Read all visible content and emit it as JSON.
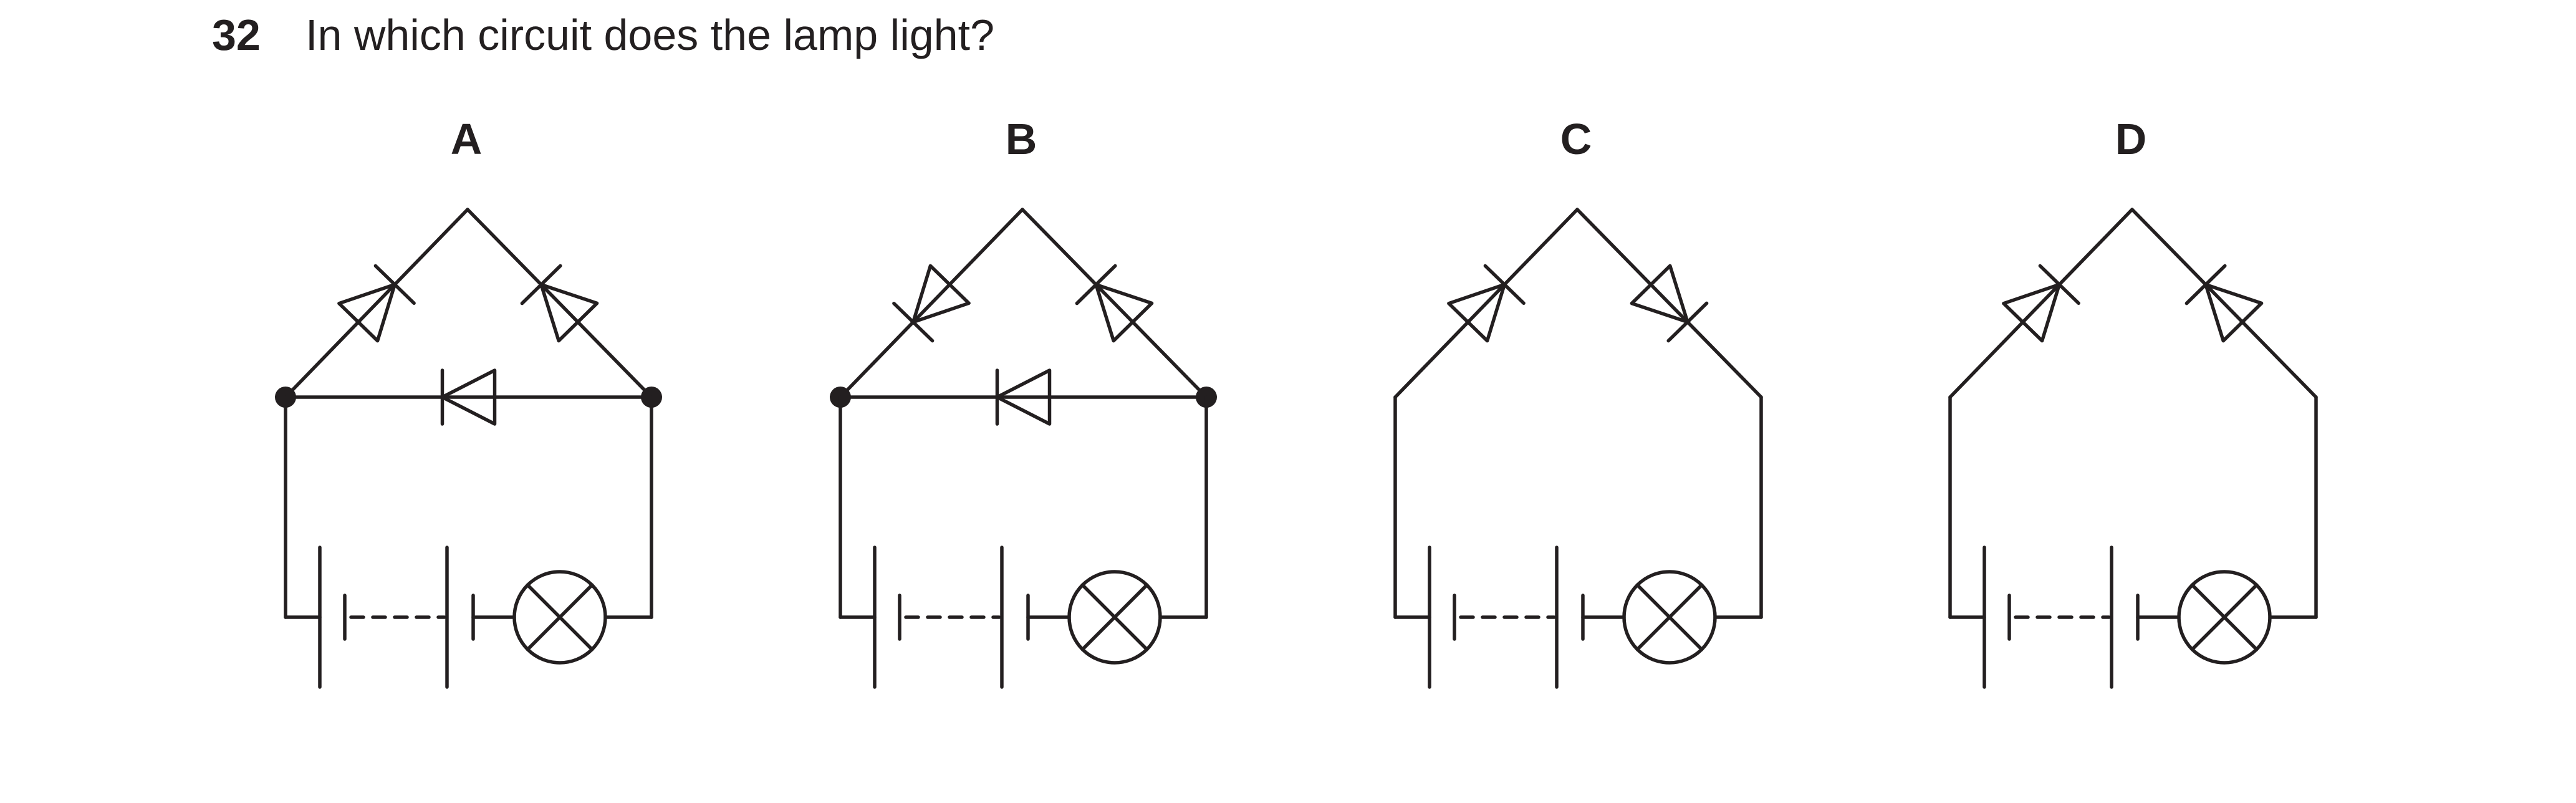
{
  "question": {
    "number": "32",
    "text": "In which circuit does the lamp light?"
  },
  "options": [
    {
      "label": "A",
      "top_left_diode": "forward",
      "top_right_diode": "backward",
      "has_middle_branch": true,
      "middle_diode": "left"
    },
    {
      "label": "B",
      "top_left_diode": "backward",
      "top_right_diode": "backward",
      "has_middle_branch": true,
      "middle_diode": "left"
    },
    {
      "label": "C",
      "top_left_diode": "forward",
      "top_right_diode": "forward",
      "has_middle_branch": false
    },
    {
      "label": "D",
      "top_left_diode": "forward",
      "top_right_diode": "backward",
      "has_middle_branch": false
    }
  ],
  "colors": {
    "ink": "#231f20",
    "background": "#ffffff"
  }
}
